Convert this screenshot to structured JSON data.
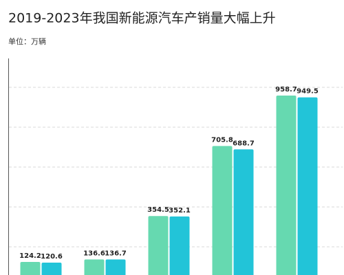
{
  "chart_data": {
    "type": "bar",
    "title": "2019-2023年我国新能源汽车产销量大幅上升",
    "subtitle": "单位：万辆",
    "categories": [
      null,
      null,
      null,
      null,
      null
    ],
    "series": [
      {
        "color": "#66d9b0",
        "values": [
          124.2,
          136.6,
          354.5,
          705.8,
          958.7
        ]
      },
      {
        "color": "#22c4d8",
        "values": [
          120.6,
          136.7,
          352.1,
          688.7,
          949.5
        ]
      }
    ],
    "ylim": [
      0,
      1145
    ],
    "yticks": [
      200,
      400,
      600,
      800,
      1000
    ],
    "grid": true
  }
}
